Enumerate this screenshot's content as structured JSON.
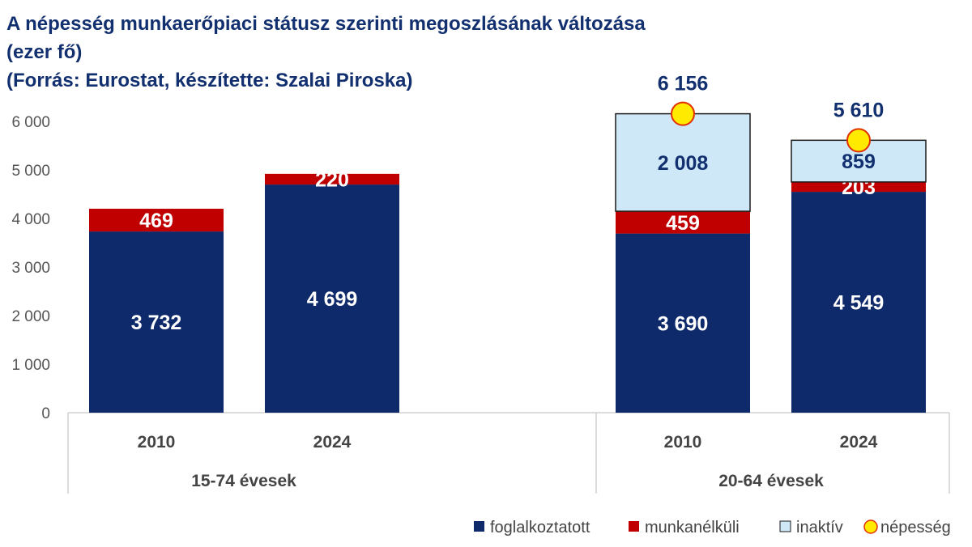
{
  "chart_data": {
    "type": "bar",
    "stacked": true,
    "title_lines": [
      "A népesség munkaerőpiaci státusz szerinti megoszlásának változása",
      "(ezer fő)",
      "(Forrás: Eurostat, készítette: Szalai Piroska)"
    ],
    "groups": [
      {
        "label": "15-74 évesek",
        "categories": [
          "2010",
          "2024"
        ]
      },
      {
        "label": "20-64 évesek",
        "categories": [
          "2010",
          "2024"
        ]
      }
    ],
    "series": [
      {
        "name": "foglalkoztatott",
        "color": "#0f2a6b",
        "label_color": "#ffffff",
        "values": [
          3732,
          4699,
          3690,
          4549
        ],
        "labels": [
          "3 732",
          "4 699",
          "3 690",
          "4 549"
        ]
      },
      {
        "name": "munkanélküli",
        "color": "#c00000",
        "label_color": "#ffffff",
        "values": [
          469,
          220,
          459,
          203
        ],
        "labels": [
          "469",
          "220",
          "459",
          "203"
        ]
      },
      {
        "name": "inaktív",
        "color": "#cfe8f7",
        "label_color": "#12306f",
        "values": [
          null,
          null,
          2008,
          859
        ],
        "labels": [
          "",
          "",
          "2 008",
          "859"
        ]
      }
    ],
    "markers": {
      "name": "népesség",
      "color": "#ffea00",
      "edge_color": "#e03000",
      "values": [
        null,
        null,
        6156,
        5610
      ],
      "labels": [
        "",
        "",
        "6 156",
        "5 610"
      ]
    },
    "y_axis": {
      "min": 0,
      "max": 6000,
      "ticks": [
        0,
        1000,
        2000,
        3000,
        4000,
        5000,
        6000
      ],
      "tick_labels": [
        "0",
        "1 000",
        "2 000",
        "3 000",
        "4 000",
        "5 000",
        "6 000"
      ]
    },
    "grid": false,
    "legend_position": "bottom-right"
  }
}
